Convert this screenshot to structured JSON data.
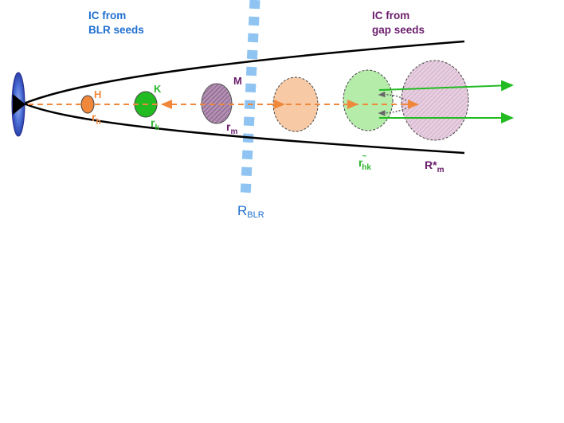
{
  "header_left": {
    "line1": "IC from",
    "line2": "BLR seeds"
  },
  "header_right": {
    "line1": "IC from",
    "line2": "gap seeds"
  },
  "blobs": {
    "h": {
      "label": "H",
      "radius_label": "r",
      "radius_sub": "h"
    },
    "k": {
      "label": "K",
      "radius_label": "r",
      "radius_sub": "k"
    },
    "m": {
      "label": "M",
      "radius_label": "r",
      "radius_sub": "m"
    },
    "hk_far": {
      "radius_label": "r",
      "radius_tilde": "~",
      "radius_sub": "hk"
    },
    "m_far": {
      "radius_label": "R*",
      "radius_sub": "m"
    }
  },
  "blr_boundary": {
    "label": "R",
    "sub": "BLR"
  },
  "colors": {
    "blue_text": "#1f6fd0",
    "purple_text": "#6b1d6b",
    "orange": "#f0883c",
    "green": "#22bb22",
    "green_text": "#2db52d",
    "blr_band": "#8fc4f2",
    "purple_fill": "#a682a8",
    "peach_fill": "#f8c9a5",
    "light_green_fill": "#b6ecaa",
    "pink_hatch_fill": "#ddbfd6",
    "cone_line": "#000000",
    "source_blue": "#3a5fc7"
  }
}
